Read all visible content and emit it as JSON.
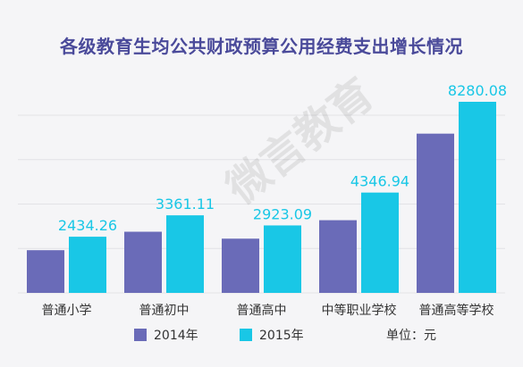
{
  "title": "各级教育生均公共财政预算公用经费支出增长情况",
  "watermark": "微言教育",
  "unit_label": "单位：元",
  "colors": {
    "s2014": "#6a6bb8",
    "s2015": "#19c7e6",
    "label": "#19c7e6"
  },
  "chart_data": {
    "type": "bar",
    "categories": [
      "普通小学",
      "普通初中",
      "普通高中",
      "中等职业学校",
      "普通高等学校"
    ],
    "series": [
      {
        "name": "2014年",
        "values": [
          1850,
          2650,
          2350,
          3150,
          6900
        ]
      },
      {
        "name": "2015年",
        "values": [
          2434.26,
          3361.11,
          2923.09,
          4346.94,
          8280.08
        ]
      }
    ],
    "data_labels": [
      "2434.26",
      "3361.11",
      "2923.09",
      "4346.94",
      "8280.08"
    ],
    "ylim": [
      0,
      8280.08
    ],
    "grid": true,
    "legend": "bottom"
  }
}
